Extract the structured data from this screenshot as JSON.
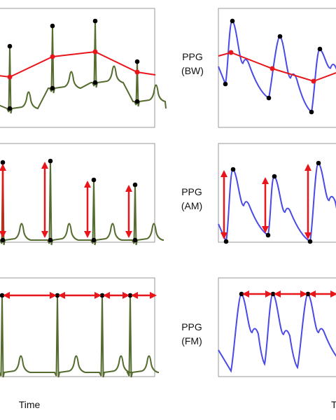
{
  "panels": [
    {
      "label": [
        "PPG",
        "(BW)"
      ]
    },
    {
      "label": [
        "PPG",
        "(AM)"
      ]
    },
    {
      "label": [
        "PPG",
        "(FM)"
      ]
    }
  ],
  "axis": {
    "left": "Time",
    "right": "T"
  }
}
